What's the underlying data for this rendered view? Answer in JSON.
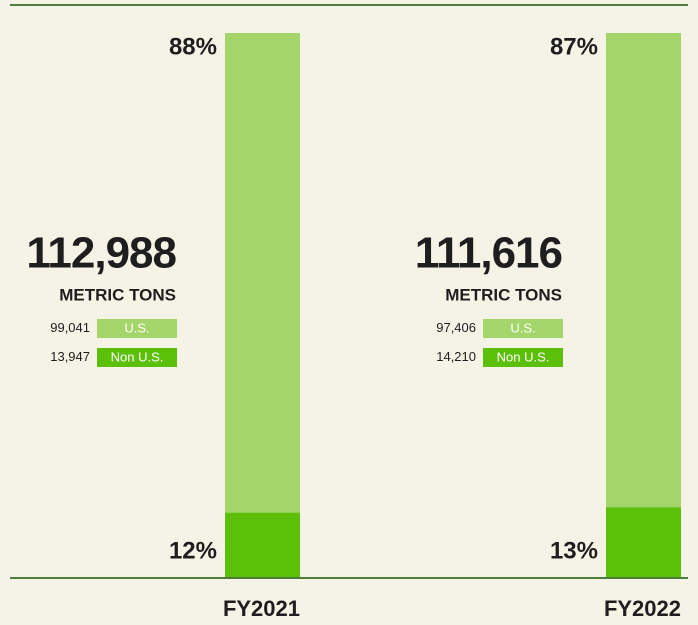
{
  "chart_data": {
    "type": "bar",
    "stacked": true,
    "categories": [
      "FY2021",
      "FY2022"
    ],
    "series": [
      {
        "name": "Non U.S.",
        "color": "#5cbf0a",
        "values": [
          12,
          13
        ],
        "value_labels": [
          "12%",
          "13%"
        ],
        "amounts": [
          {
            "value": 13947,
            "label": "13,947"
          },
          {
            "value": 14210,
            "label": "14,210"
          }
        ]
      },
      {
        "name": "U.S.",
        "color": "#a3d56a",
        "values": [
          88,
          87
        ],
        "value_labels": [
          "88%",
          "87%"
        ],
        "amounts": [
          {
            "value": 99041,
            "label": "99,041"
          },
          {
            "value": 97406,
            "label": "97,406"
          }
        ]
      }
    ],
    "totals": [
      {
        "value": 112988,
        "label": "112,988"
      },
      {
        "value": 111616,
        "label": "111,616"
      }
    ],
    "unit_label": "METRIC TONS",
    "ylim": [
      0,
      100
    ],
    "line_color": "#4d7c3c"
  }
}
